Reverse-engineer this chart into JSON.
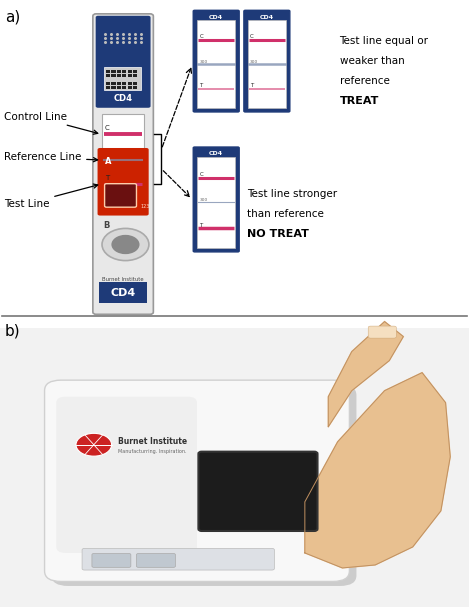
{
  "fig_width": 4.69,
  "fig_height": 6.07,
  "dpi": 100,
  "bg_color": "#ffffff",
  "panel_a_label": "a)",
  "panel_b_label": "b)",
  "label_fontsize": 11,
  "annotation_fontsize": 8,
  "treat_text_lines": [
    "Test line equal or",
    "weaker than",
    "reference"
  ],
  "treat_bold": "TREAT",
  "notreat_text_lines": [
    "Test line stronger",
    "than reference"
  ],
  "notreat_bold": "NO TREAT",
  "control_line_label": "Control Line",
  "reference_line_label": "Reference Line",
  "test_line_label": "Test Line",
  "cd4_blue": "#1e3a78",
  "cd4_red": "#cc2200",
  "strip_bg": "#ffffff",
  "line_pink": "#d0306a",
  "line_ref": "#8090b0",
  "body_color": "#e8e8e8",
  "body_border": "#999999"
}
